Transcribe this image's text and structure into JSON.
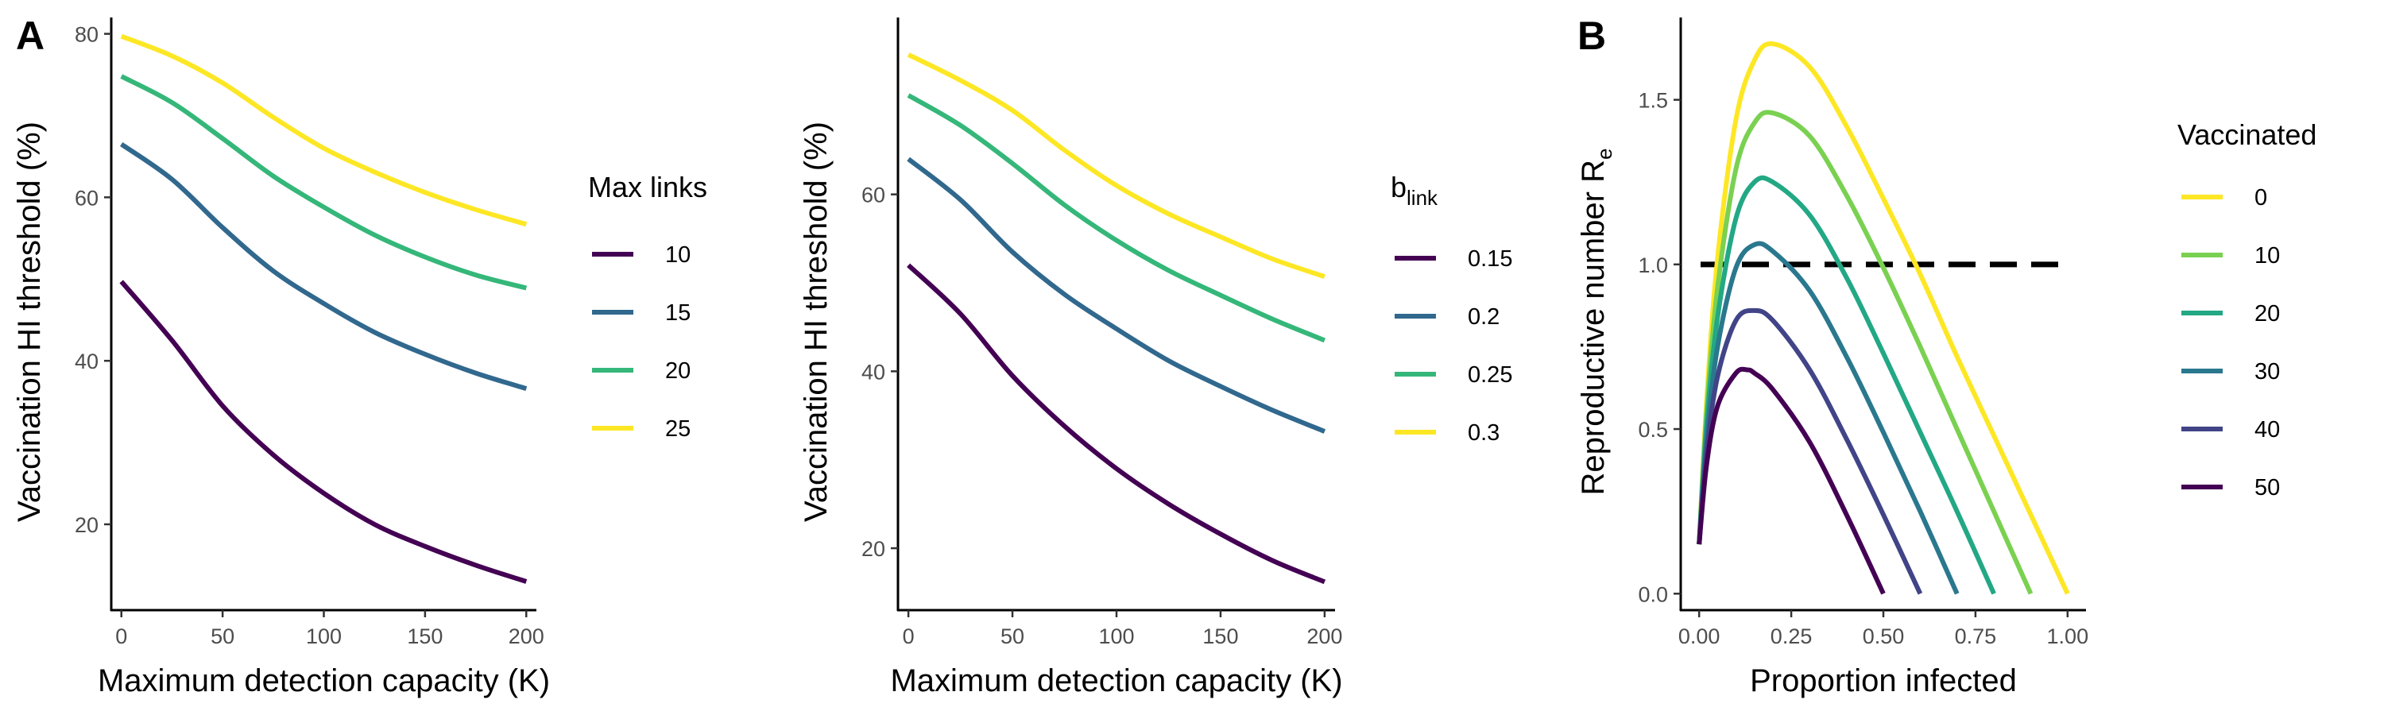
{
  "panel_labels": [
    "A",
    "B"
  ],
  "colors": {
    "c10": "#440154",
    "c15": "#31688E",
    "c20": "#35B779",
    "c25": "#FDE725",
    "v0": "#FDE725",
    "v10": "#7AD151",
    "v20": "#22A884",
    "v30": "#2A788E",
    "v40": "#414487",
    "v50": "#440154",
    "threshold_line": "#000000"
  },
  "chart_data": [
    {
      "type": "line",
      "panel": "A",
      "xlabel": "Maximum detection capacity (K)",
      "ylabel": "Vaccination HI threshold (%)",
      "xlim": [
        -5,
        205
      ],
      "ylim": [
        9.5,
        82
      ],
      "xticks": [
        0,
        50,
        100,
        150,
        200
      ],
      "yticks": [
        20,
        40,
        60,
        80
      ],
      "grid": false,
      "legend": {
        "title": "Max links",
        "placement": "right"
      },
      "x": [
        0,
        25,
        50,
        75,
        100,
        125,
        150,
        175,
        200
      ],
      "series": [
        {
          "name": "10",
          "color": "#440154",
          "values": [
            49.7,
            42.5,
            34.5,
            28.5,
            23.8,
            20.0,
            17.3,
            15.0,
            13.0
          ]
        },
        {
          "name": "15",
          "color": "#31688E",
          "values": [
            66.5,
            62.2,
            56.3,
            51.0,
            47.0,
            43.5,
            40.8,
            38.5,
            36.6
          ]
        },
        {
          "name": "20",
          "color": "#35B779",
          "values": [
            74.8,
            71.6,
            67.2,
            62.6,
            58.8,
            55.4,
            52.7,
            50.5,
            48.9
          ]
        },
        {
          "name": "25",
          "color": "#FDE725",
          "values": [
            79.7,
            77.3,
            74.0,
            69.8,
            66.0,
            63.1,
            60.6,
            58.5,
            56.7
          ]
        }
      ]
    },
    {
      "type": "line",
      "panel": "A (right)",
      "xlabel": "Maximum detection capacity (K)",
      "ylabel": "Vaccination HI threshold (%)",
      "xlim": [
        -5,
        205
      ],
      "ylim": [
        13,
        80
      ],
      "xticks": [
        0,
        50,
        100,
        150,
        200
      ],
      "yticks": [
        20,
        40,
        60
      ],
      "grid": false,
      "legend": {
        "title_main": "b",
        "title_sub": "link",
        "placement": "right"
      },
      "x": [
        0,
        25,
        50,
        75,
        100,
        125,
        150,
        175,
        200
      ],
      "series": [
        {
          "name": "0.15",
          "color": "#440154",
          "values": [
            52.0,
            46.5,
            39.5,
            33.8,
            29.0,
            25.0,
            21.6,
            18.6,
            16.2
          ]
        },
        {
          "name": "0.2",
          "color": "#31688E",
          "values": [
            64.0,
            59.4,
            53.5,
            48.7,
            44.8,
            41.2,
            38.3,
            35.6,
            33.2
          ]
        },
        {
          "name": "0.25",
          "color": "#35B779",
          "values": [
            71.2,
            67.8,
            63.5,
            58.8,
            54.8,
            51.4,
            48.6,
            45.9,
            43.5
          ]
        },
        {
          "name": "0.3",
          "color": "#FDE725",
          "values": [
            75.8,
            72.9,
            69.5,
            65.0,
            61.0,
            57.8,
            55.2,
            52.7,
            50.7
          ]
        }
      ]
    },
    {
      "type": "line",
      "panel": "B",
      "xlabel": "Proportion infected",
      "ylabel": "Reproductive number",
      "ylabel_symbol": "R",
      "ylabel_sub": "e",
      "xlim": [
        -0.05,
        1.05
      ],
      "ylim": [
        -0.05,
        1.75
      ],
      "xticks": [
        "0.00",
        "0.25",
        "0.50",
        "0.75",
        "1.00"
      ],
      "yticks": [
        "0.0",
        "0.5",
        "1.0",
        "1.5"
      ],
      "grid": false,
      "threshold": {
        "y": 1.0,
        "style": "dashed"
      },
      "legend": {
        "title": "Vaccinated",
        "placement": "right"
      },
      "series": [
        {
          "name": "0",
          "color": "#FDE725",
          "x": [
            0,
            0.02,
            0.05,
            0.1,
            0.15,
            0.2,
            0.3,
            0.4,
            0.5,
            0.6,
            0.7,
            0.8,
            0.9,
            1.0
          ],
          "values": [
            0.15,
            0.58,
            1.02,
            1.44,
            1.62,
            1.67,
            1.6,
            1.42,
            1.2,
            0.97,
            0.72,
            0.48,
            0.24,
            0.0
          ]
        },
        {
          "name": "10",
          "color": "#7AD151",
          "x": [
            0,
            0.02,
            0.05,
            0.1,
            0.15,
            0.2,
            0.3,
            0.4,
            0.5,
            0.6,
            0.7,
            0.8,
            0.9
          ],
          "values": [
            0.15,
            0.55,
            0.93,
            1.29,
            1.43,
            1.46,
            1.39,
            1.21,
            0.99,
            0.75,
            0.5,
            0.25,
            0.0
          ]
        },
        {
          "name": "20",
          "color": "#22A884",
          "x": [
            0,
            0.02,
            0.05,
            0.1,
            0.15,
            0.2,
            0.3,
            0.4,
            0.5,
            0.6,
            0.7,
            0.8
          ],
          "values": [
            0.15,
            0.51,
            0.84,
            1.14,
            1.25,
            1.25,
            1.15,
            0.96,
            0.73,
            0.49,
            0.25,
            0.0
          ]
        },
        {
          "name": "30",
          "color": "#2A788E",
          "x": [
            0,
            0.02,
            0.05,
            0.1,
            0.15,
            0.2,
            0.3,
            0.4,
            0.5,
            0.6,
            0.7
          ],
          "values": [
            0.15,
            0.47,
            0.75,
            0.99,
            1.06,
            1.04,
            0.92,
            0.72,
            0.49,
            0.25,
            0.0
          ]
        },
        {
          "name": "40",
          "color": "#414487",
          "x": [
            0,
            0.02,
            0.05,
            0.1,
            0.15,
            0.2,
            0.3,
            0.4,
            0.5,
            0.6
          ],
          "values": [
            0.15,
            0.43,
            0.66,
            0.83,
            0.86,
            0.83,
            0.68,
            0.47,
            0.24,
            0.0
          ]
        },
        {
          "name": "50",
          "color": "#440154",
          "x": [
            0,
            0.02,
            0.05,
            0.1,
            0.13,
            0.15,
            0.2,
            0.3,
            0.4,
            0.5
          ],
          "values": [
            0.15,
            0.39,
            0.57,
            0.67,
            0.68,
            0.67,
            0.62,
            0.46,
            0.24,
            0.0
          ]
        }
      ]
    }
  ]
}
